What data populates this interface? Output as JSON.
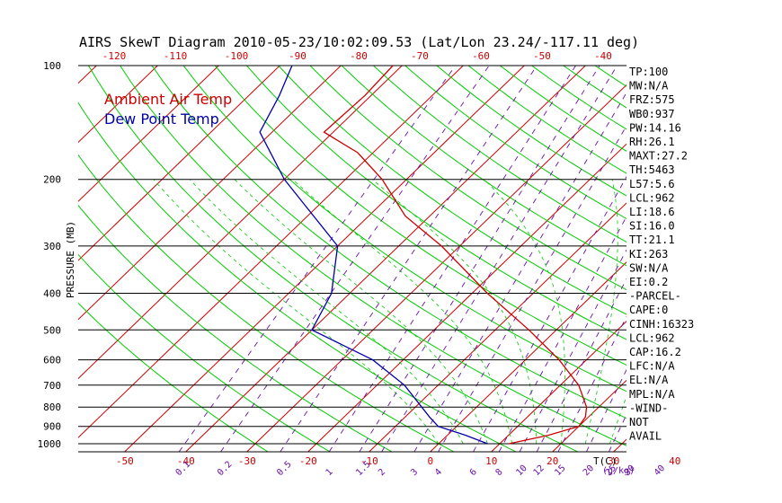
{
  "title": "AIRS SkewT Diagram 2010-05-23/10:02:09.53 (Lat/Lon 23.24/-117.11 deg)",
  "colors": {
    "ambient": "#cc0000",
    "dewpoint": "#0000aa",
    "dry_adiabat": "#00cc00",
    "isotherm": "#cc0000",
    "mixing_ratio": "#6a0fa8",
    "isobar": "#000000"
  },
  "chart_data": {
    "type": "line",
    "title": "AIRS SkewT Diagram 2010-05-23/10:02:09.53 (Lat/Lon 23.24/-117.11 deg)",
    "ylabel": "PRESSURE (MB)",
    "x_bottom_label": "T(C)",
    "mixing_ratio_label": "(g/kg)",
    "y_scale": "log",
    "ylim": [
      1050,
      100
    ],
    "pressure_ticks": [
      100,
      200,
      300,
      400,
      500,
      600,
      700,
      800,
      900,
      1000
    ],
    "bottom_temp_ticks": [
      -50,
      -40,
      -30,
      -20,
      -10,
      0,
      10,
      20,
      30,
      40
    ],
    "top_temp_ticks": [
      -120,
      -110,
      -100,
      -90,
      -80,
      -70,
      -60,
      -50,
      -40
    ],
    "mixing_ratio_ticks": [
      "0.1",
      "0.2",
      "0.5",
      "1",
      "1.5",
      "2",
      "3",
      "4",
      "6",
      "8",
      "10",
      "12",
      "15",
      "20",
      "25",
      "30",
      "40"
    ],
    "legend": [
      "Ambient Air Temp",
      "Dew Point Temp"
    ],
    "series": [
      {
        "name": "Ambient Air Temp",
        "points": [
          {
            "p": 1000,
            "t": 11.5
          },
          {
            "p": 950,
            "t": 16.5
          },
          {
            "p": 900,
            "t": 20.0
          },
          {
            "p": 850,
            "t": 19.5
          },
          {
            "p": 800,
            "t": 18.0
          },
          {
            "p": 700,
            "t": 13.0
          },
          {
            "p": 600,
            "t": 5.5
          },
          {
            "p": 500,
            "t": -4.5
          },
          {
            "p": 400,
            "t": -17.5
          },
          {
            "p": 300,
            "t": -33.0
          },
          {
            "p": 250,
            "t": -44.0
          },
          {
            "p": 200,
            "t": -54.0
          },
          {
            "p": 170,
            "t": -62.5
          },
          {
            "p": 150,
            "t": -71.5
          },
          {
            "p": 120,
            "t": -71.0
          },
          {
            "p": 100,
            "t": -71.5
          }
        ]
      },
      {
        "name": "Dew Point Temp",
        "points": [
          {
            "p": 1000,
            "t": 8.0
          },
          {
            "p": 950,
            "t": 3.0
          },
          {
            "p": 900,
            "t": -3.0
          },
          {
            "p": 850,
            "t": -6.0
          },
          {
            "p": 700,
            "t": -15.5
          },
          {
            "p": 600,
            "t": -25.0
          },
          {
            "p": 500,
            "t": -40.0
          },
          {
            "p": 400,
            "t": -43.0
          },
          {
            "p": 300,
            "t": -50.0
          },
          {
            "p": 250,
            "t": -59.0
          },
          {
            "p": 200,
            "t": -70.0
          },
          {
            "p": 150,
            "t": -82.0
          },
          {
            "p": 120,
            "t": -85.0
          },
          {
            "p": 100,
            "t": -88.0
          }
        ]
      }
    ],
    "grid": true
  },
  "indices": [
    "TP:100",
    "MW:N/A",
    "FRZ:575",
    "WB0:937",
    "PW:14.16",
    "RH:26.1",
    "MAXT:27.2",
    "TH:5463",
    "L57:5.6",
    "LCL:962",
    "LI:18.6",
    "SI:16.0",
    "TT:21.1",
    "KI:263",
    "SW:N/A",
    "EI:0.2",
    "-PARCEL-",
    "CAPE:0",
    "CINH:16323",
    "LCL:962",
    "CAP:16.2",
    "LFC:N/A",
    "EL:N/A",
    "MPL:N/A",
    "-WIND-",
    "NOT",
    "AVAIL"
  ]
}
